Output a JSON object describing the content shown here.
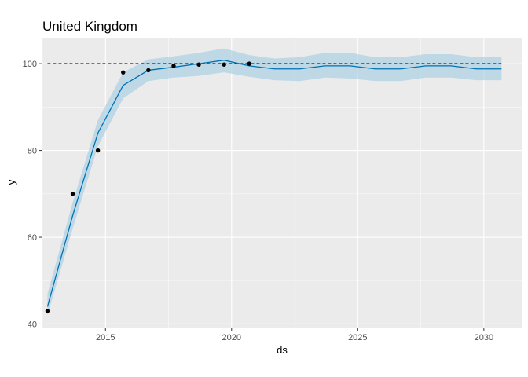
{
  "chart_data": {
    "type": "line",
    "title": "United Kingdom",
    "xlabel": "ds",
    "ylabel": "y",
    "xlim": [
      2012.5,
      2031.5
    ],
    "ylim": [
      39,
      106
    ],
    "xticks": [
      2015,
      2020,
      2025,
      2030
    ],
    "yticks": [
      40,
      60,
      80,
      100
    ],
    "grid": true,
    "cap": 100,
    "colors": {
      "panel": "#ebebeb",
      "grid_major": "#ffffff",
      "forecast_line": "#0072b2",
      "interval_fill": "#a6cee3",
      "points": "#000000",
      "cap_line": "#000000"
    },
    "observed": {
      "x": [
        2012.7,
        2013.7,
        2014.7,
        2015.7,
        2016.7,
        2017.7,
        2018.7,
        2019.7,
        2020.7
      ],
      "y": [
        43,
        70,
        80,
        98,
        98.5,
        99.5,
        99.8,
        99.8,
        100
      ]
    },
    "forecast": {
      "x": [
        2012.7,
        2013.7,
        2014.7,
        2015.7,
        2016.7,
        2017.7,
        2018.7,
        2019.7,
        2020.7,
        2021.7,
        2022.7,
        2023.7,
        2024.7,
        2025.7,
        2026.7,
        2027.7,
        2028.7,
        2029.7,
        2030.7
      ],
      "yhat": [
        44,
        65,
        84,
        95,
        98.5,
        99.2,
        100,
        100.8,
        99.5,
        98.8,
        98.8,
        99.5,
        99.5,
        98.8,
        98.8,
        99.5,
        99.5,
        98.8,
        98.8
      ],
      "lower": [
        42,
        62,
        81,
        92,
        96,
        96.8,
        97.2,
        98,
        97,
        96.2,
        96,
        96.8,
        96.6,
        96,
        96,
        96.8,
        96.8,
        96.2,
        96.2
      ],
      "upper": [
        47,
        68,
        87,
        98,
        101,
        101.7,
        102.5,
        103.5,
        102,
        101.2,
        101.5,
        102.5,
        102.5,
        101.5,
        101.5,
        102.2,
        102.2,
        101.5,
        101.5
      ]
    }
  }
}
